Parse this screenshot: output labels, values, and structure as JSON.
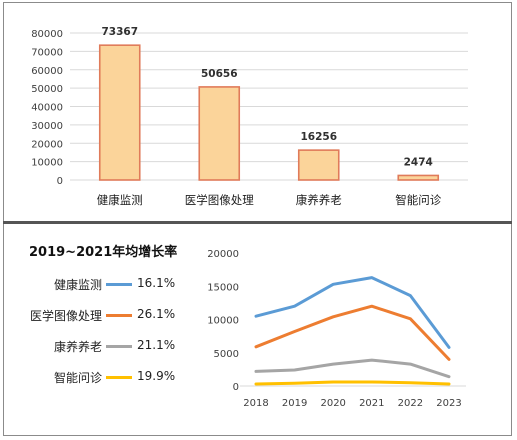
{
  "chart_data": [
    {
      "type": "bar",
      "categories": [
        "健康监测",
        "医学图像处理",
        "康养养老",
        "智能问诊"
      ],
      "values": [
        73367,
        50656,
        16256,
        2474
      ],
      "data_labels": [
        "73367",
        "50656",
        "16256",
        "2474"
      ],
      "yticks": [
        "0",
        "10000",
        "20000",
        "30000",
        "40000",
        "50000",
        "60000",
        "70000",
        "80000"
      ],
      "ylim": [
        0,
        80000
      ],
      "grid": true,
      "colors": {
        "fill": "#fbd49a",
        "stroke": "#e07b5a"
      }
    },
    {
      "type": "line",
      "x": [
        "2018",
        "2019",
        "2020",
        "2021",
        "2022",
        "2023"
      ],
      "series": [
        {
          "name": "健康监测",
          "values": [
            10500,
            12000,
            15300,
            16300,
            13600,
            5800
          ],
          "color": "#5b9bd5"
        },
        {
          "name": "医学图像处理",
          "values": [
            5900,
            8200,
            10400,
            12000,
            10100,
            4000
          ],
          "color": "#ed7d31"
        },
        {
          "name": "康养养老",
          "values": [
            2200,
            2400,
            3300,
            3900,
            3300,
            1400
          ],
          "color": "#a5a5a5"
        },
        {
          "name": "智能问诊",
          "values": [
            300,
            400,
            600,
            600,
            500,
            300
          ],
          "color": "#ffc000"
        }
      ],
      "yticks": [
        "0",
        "5000",
        "10000",
        "15000",
        "20000"
      ],
      "ylim": [
        0,
        20000
      ],
      "grid": false
    }
  ],
  "legend": {
    "title": "2019~2021年均增长率",
    "items": [
      {
        "name": "健康监测",
        "rate": "16.1%",
        "color": "#5b9bd5"
      },
      {
        "name": "医学图像处理",
        "rate": "26.1%",
        "color": "#ed7d31"
      },
      {
        "name": "康养养老",
        "rate": "21.1%",
        "color": "#a5a5a5"
      },
      {
        "name": "智能问诊",
        "rate": "19.9%",
        "color": "#ffc000"
      }
    ]
  }
}
